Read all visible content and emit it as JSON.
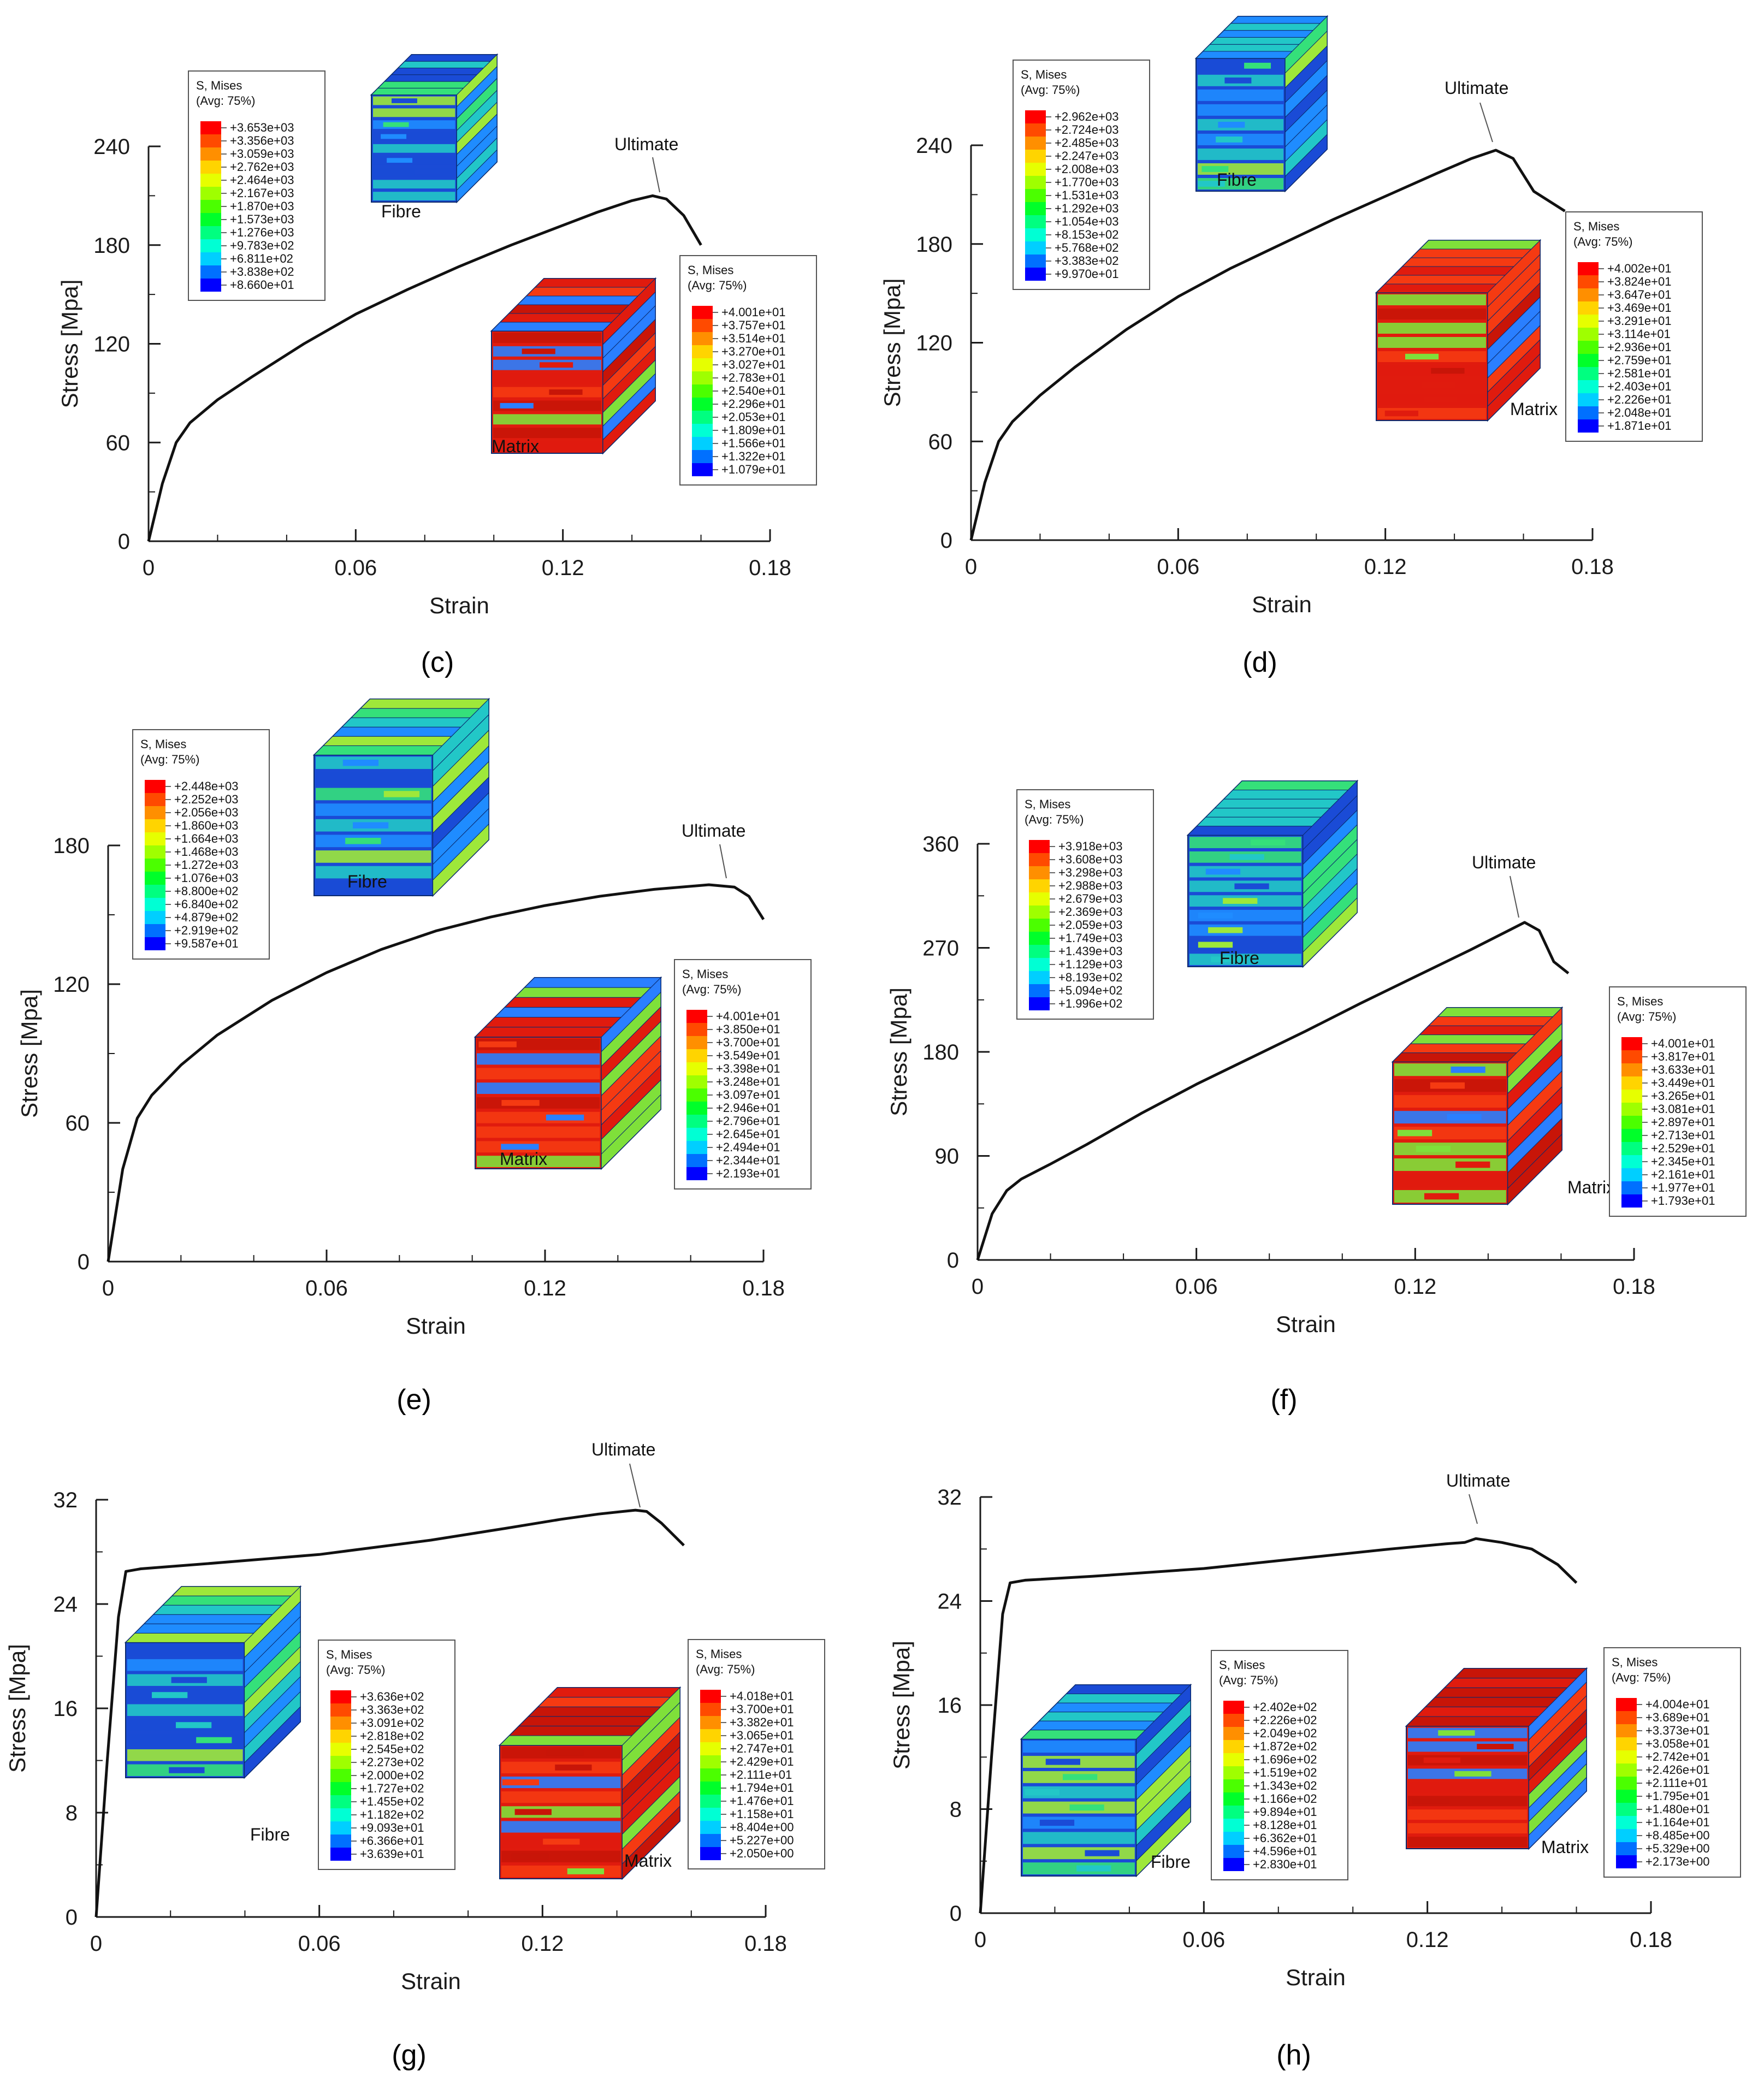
{
  "chart_data": [
    {
      "panel": "c",
      "type": "line",
      "xlabel": "Strain",
      "ylabel": "Stress [Mpa]",
      "xlim": [
        0,
        0.18
      ],
      "ylim": [
        0,
        240
      ],
      "xticks": [
        "0",
        "0.06",
        "0.12",
        "0.18"
      ],
      "yticks": [
        "0",
        "60",
        "120",
        "180",
        "240"
      ],
      "annotation": "Ultimate",
      "series": [
        {
          "name": "stress-strain",
          "x": [
            0,
            0.004,
            0.008,
            0.012,
            0.02,
            0.03,
            0.045,
            0.06,
            0.075,
            0.09,
            0.105,
            0.12,
            0.13,
            0.14,
            0.146,
            0.15,
            0.155,
            0.16
          ],
          "y": [
            0,
            35,
            60,
            72,
            86,
            100,
            120,
            138,
            153,
            167,
            180,
            192,
            200,
            207,
            210,
            208,
            198,
            180
          ]
        }
      ],
      "legends": [
        {
          "title": "S, Mises",
          "subtitle": "(Avg: 75%)",
          "values": [
            "+3.653e+03",
            "+3.356e+03",
            "+3.059e+03",
            "+2.762e+03",
            "+2.464e+03",
            "+2.167e+03",
            "+1.870e+03",
            "+1.573e+03",
            "+1.276e+03",
            "+9.783e+02",
            "+6.811e+02",
            "+3.838e+02",
            "+8.660e+01"
          ]
        },
        {
          "title": "S, Mises",
          "subtitle": "(Avg: 75%)",
          "values": [
            "+4.001e+01",
            "+3.757e+01",
            "+3.514e+01",
            "+3.270e+01",
            "+3.027e+01",
            "+2.783e+01",
            "+2.540e+01",
            "+2.296e+01",
            "+2.053e+01",
            "+1.809e+01",
            "+1.566e+01",
            "+1.322e+01",
            "+1.079e+01"
          ]
        }
      ],
      "labels": [
        "Fibre",
        "Matrix"
      ],
      "caption": "(c)"
    },
    {
      "panel": "d",
      "type": "line",
      "xlabel": "Strain",
      "ylabel": "Stress [Mpa]",
      "xlim": [
        0,
        0.18
      ],
      "ylim": [
        0,
        240
      ],
      "xticks": [
        "0",
        "0.06",
        "0.12",
        "0.18"
      ],
      "yticks": [
        "0",
        "60",
        "120",
        "180",
        "240"
      ],
      "annotation": "Ultimate",
      "series": [
        {
          "name": "stress-strain",
          "x": [
            0,
            0.004,
            0.008,
            0.012,
            0.02,
            0.03,
            0.045,
            0.06,
            0.075,
            0.09,
            0.105,
            0.12,
            0.135,
            0.145,
            0.152,
            0.157,
            0.163,
            0.172
          ],
          "y": [
            0,
            35,
            60,
            72,
            88,
            105,
            128,
            148,
            165,
            180,
            195,
            209,
            223,
            232,
            237,
            232,
            212,
            200
          ]
        }
      ],
      "legends": [
        {
          "title": "S, Mises",
          "subtitle": "(Avg: 75%)",
          "values": [
            "+2.962e+03",
            "+2.724e+03",
            "+2.485e+03",
            "+2.247e+03",
            "+2.008e+03",
            "+1.770e+03",
            "+1.531e+03",
            "+1.292e+03",
            "+1.054e+03",
            "+8.153e+02",
            "+5.768e+02",
            "+3.383e+02",
            "+9.970e+01"
          ]
        },
        {
          "title": "S, Mises",
          "subtitle": "(Avg: 75%)",
          "values": [
            "+4.002e+01",
            "+3.824e+01",
            "+3.647e+01",
            "+3.469e+01",
            "+3.291e+01",
            "+3.114e+01",
            "+2.936e+01",
            "+2.759e+01",
            "+2.581e+01",
            "+2.403e+01",
            "+2.226e+01",
            "+2.048e+01",
            "+1.871e+01"
          ]
        }
      ],
      "labels": [
        "Fibre",
        "Matrix"
      ],
      "caption": "(d)"
    },
    {
      "panel": "e",
      "type": "line",
      "xlabel": "Strain",
      "ylabel": "Stress [Mpa]",
      "xlim": [
        0,
        0.18
      ],
      "ylim": [
        0,
        180
      ],
      "xticks": [
        "0",
        "0.06",
        "0.12",
        "0.18"
      ],
      "yticks": [
        "0",
        "60",
        "120",
        "180"
      ],
      "annotation": "Ultimate",
      "series": [
        {
          "name": "stress-strain",
          "x": [
            0,
            0.004,
            0.008,
            0.012,
            0.02,
            0.03,
            0.045,
            0.06,
            0.075,
            0.09,
            0.105,
            0.12,
            0.135,
            0.15,
            0.165,
            0.172,
            0.176,
            0.18
          ],
          "y": [
            0,
            40,
            62,
            72,
            85,
            98,
            113,
            125,
            135,
            143,
            149,
            154,
            158,
            161,
            163,
            162,
            158,
            148
          ]
        }
      ],
      "legends": [
        {
          "title": "S, Mises",
          "subtitle": "(Avg: 75%)",
          "values": [
            "+2.448e+03",
            "+2.252e+03",
            "+2.056e+03",
            "+1.860e+03",
            "+1.664e+03",
            "+1.468e+03",
            "+1.272e+03",
            "+1.076e+03",
            "+8.800e+02",
            "+6.840e+02",
            "+4.879e+02",
            "+2.919e+02",
            "+9.587e+01"
          ]
        },
        {
          "title": "S, Mises",
          "subtitle": "(Avg: 75%)",
          "values": [
            "+4.001e+01",
            "+3.850e+01",
            "+3.700e+01",
            "+3.549e+01",
            "+3.398e+01",
            "+3.248e+01",
            "+3.097e+01",
            "+2.946e+01",
            "+2.796e+01",
            "+2.645e+01",
            "+2.494e+01",
            "+2.344e+01",
            "+2.193e+01"
          ]
        }
      ],
      "labels": [
        "Fibre",
        "Matrix"
      ],
      "caption": "(e)"
    },
    {
      "panel": "f",
      "type": "line",
      "xlabel": "Strain",
      "ylabel": "Stress [Mpa]",
      "xlim": [
        0,
        0.18
      ],
      "ylim": [
        0,
        360
      ],
      "xticks": [
        "0",
        "0.06",
        "0.12",
        "0.18"
      ],
      "yticks": [
        "0",
        "90",
        "180",
        "270",
        "360"
      ],
      "annotation": "Ultimate",
      "series": [
        {
          "name": "stress-strain",
          "x": [
            0,
            0.004,
            0.008,
            0.012,
            0.02,
            0.03,
            0.045,
            0.06,
            0.075,
            0.09,
            0.105,
            0.12,
            0.135,
            0.145,
            0.15,
            0.154,
            0.158,
            0.162
          ],
          "y": [
            0,
            40,
            60,
            70,
            83,
            100,
            127,
            152,
            175,
            198,
            222,
            245,
            268,
            284,
            292,
            285,
            258,
            248
          ]
        }
      ],
      "legends": [
        {
          "title": "S, Mises",
          "subtitle": "(Avg: 75%)",
          "values": [
            "+3.918e+03",
            "+3.608e+03",
            "+3.298e+03",
            "+2.988e+03",
            "+2.679e+03",
            "+2.369e+03",
            "+2.059e+03",
            "+1.749e+03",
            "+1.439e+03",
            "+1.129e+03",
            "+8.193e+02",
            "+5.094e+02",
            "+1.996e+02"
          ]
        },
        {
          "title": "S, Mises",
          "subtitle": "(Avg: 75%)",
          "values": [
            "+4.001e+01",
            "+3.817e+01",
            "+3.633e+01",
            "+3.449e+01",
            "+3.265e+01",
            "+3.081e+01",
            "+2.897e+01",
            "+2.713e+01",
            "+2.529e+01",
            "+2.345e+01",
            "+2.161e+01",
            "+1.977e+01",
            "+1.793e+01"
          ]
        }
      ],
      "labels": [
        "Fibre",
        "Matrix"
      ],
      "caption": "(f)"
    },
    {
      "panel": "g",
      "type": "line",
      "xlabel": "Strain",
      "ylabel": "Stress [Mpa]",
      "xlim": [
        0,
        0.18
      ],
      "ylim": [
        0,
        32
      ],
      "xticks": [
        "0",
        "0.06",
        "0.12",
        "0.18"
      ],
      "yticks": [
        "0",
        "8",
        "16",
        "24",
        "32"
      ],
      "annotation": "Ultimate",
      "series": [
        {
          "name": "stress-strain",
          "x": [
            0,
            0.003,
            0.006,
            0.008,
            0.012,
            0.03,
            0.06,
            0.09,
            0.11,
            0.125,
            0.135,
            0.145,
            0.148,
            0.152,
            0.158
          ],
          "y": [
            0,
            12,
            23,
            26.5,
            26.7,
            27.1,
            27.8,
            28.9,
            29.8,
            30.5,
            30.9,
            31.2,
            31.1,
            30.2,
            28.5
          ]
        }
      ],
      "legends": [
        {
          "title": "S, Mises",
          "subtitle": "(Avg: 75%)",
          "values": [
            "+3.636e+02",
            "+3.363e+02",
            "+3.091e+02",
            "+2.818e+02",
            "+2.545e+02",
            "+2.273e+02",
            "+2.000e+02",
            "+1.727e+02",
            "+1.455e+02",
            "+1.182e+02",
            "+9.093e+01",
            "+6.366e+01",
            "+3.639e+01"
          ]
        },
        {
          "title": "S, Mises",
          "subtitle": "(Avg: 75%)",
          "values": [
            "+4.018e+01",
            "+3.700e+01",
            "+3.382e+01",
            "+3.065e+01",
            "+2.747e+01",
            "+2.429e+01",
            "+2.111e+01",
            "+1.794e+01",
            "+1.476e+01",
            "+1.158e+01",
            "+8.404e+00",
            "+5.227e+00",
            "+2.050e+00"
          ]
        }
      ],
      "labels": [
        "Fibre",
        "Matrix"
      ],
      "caption": "(g)"
    },
    {
      "panel": "h",
      "type": "line",
      "xlabel": "Strain",
      "ylabel": "Stress [Mpa]",
      "xlim": [
        0,
        0.18
      ],
      "ylim": [
        0,
        32
      ],
      "xticks": [
        "0",
        "0.06",
        "0.12",
        "0.18"
      ],
      "yticks": [
        "0",
        "8",
        "16",
        "24",
        "32"
      ],
      "annotation": "Ultimate",
      "series": [
        {
          "name": "stress-strain",
          "x": [
            0,
            0.003,
            0.006,
            0.008,
            0.012,
            0.03,
            0.06,
            0.09,
            0.11,
            0.125,
            0.13,
            0.133,
            0.14,
            0.148,
            0.155,
            0.16
          ],
          "y": [
            0,
            12,
            23,
            25.4,
            25.6,
            25.9,
            26.5,
            27.4,
            28.0,
            28.4,
            28.5,
            28.8,
            28.5,
            28.0,
            26.8,
            25.4
          ]
        }
      ],
      "legends": [
        {
          "title": "S, Mises",
          "subtitle": "(Avg: 75%)",
          "values": [
            "+2.402e+02",
            "+2.226e+02",
            "+2.049e+02",
            "+1.872e+02",
            "+1.696e+02",
            "+1.519e+02",
            "+1.343e+02",
            "+1.166e+02",
            "+9.894e+01",
            "+8.128e+01",
            "+6.362e+01",
            "+4.596e+01",
            "+2.830e+01"
          ]
        },
        {
          "title": "S, Mises",
          "subtitle": "(Avg: 75%)",
          "values": [
            "+4.004e+01",
            "+3.689e+01",
            "+3.373e+01",
            "+3.058e+01",
            "+2.742e+01",
            "+2.426e+01",
            "+2.111e+01",
            "+1.795e+01",
            "+1.480e+01",
            "+1.164e+01",
            "+8.485e+00",
            "+5.329e+00",
            "+2.173e+00"
          ]
        }
      ],
      "labels": [
        "Fibre",
        "Matrix"
      ],
      "caption": "(h)"
    }
  ],
  "colors": {
    "curve": "#111111",
    "axis": "#1a1a1a",
    "contour_scale": [
      "#ff0000",
      "#ff4a00",
      "#ff8f00",
      "#ffd400",
      "#e6ff00",
      "#9fff00",
      "#4bff00",
      "#00ff2a",
      "#00ff80",
      "#00ffd4",
      "#00cfff",
      "#0070ff",
      "#0000ff"
    ],
    "fibre_cube": [
      "#1a4bd6",
      "#1f8cff",
      "#22c7c7",
      "#35e07a",
      "#9ee83a"
    ],
    "matrix_cube": [
      "#e01b0e",
      "#c81508",
      "#f53a12",
      "#7fe03a",
      "#2a7fff"
    ]
  }
}
